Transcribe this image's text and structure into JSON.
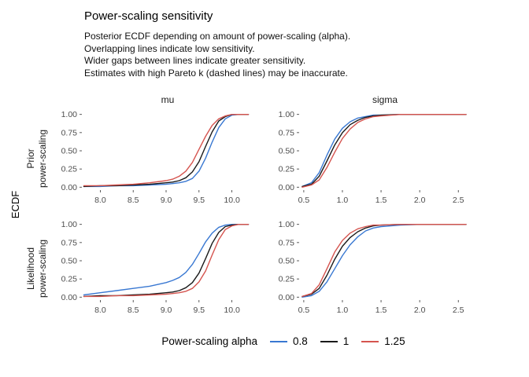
{
  "title": "Power-scaling sensitivity",
  "subtitle_lines": [
    "Posterior ECDF depending on amount of power-scaling (alpha).",
    "Overlapping lines indicate low sensitivity.",
    "Wider gaps between lines indicate greater sensitivity.",
    "Estimates with high Pareto k (dashed lines) may be inaccurate."
  ],
  "outer_y_label": "ECDF",
  "legend": {
    "title": "Power-scaling alpha",
    "items": [
      {
        "label": "0.8",
        "color": "#3978D2"
      },
      {
        "label": "1",
        "color": "#1A1A1A"
      },
      {
        "label": "1.25",
        "color": "#D5544F"
      }
    ]
  },
  "chart_data": {
    "type": "line",
    "subtype": "ecdf",
    "facet_rows": [
      "Prior power-scaling",
      "Likelihood power-scaling"
    ],
    "facet_row_lines": [
      [
        "Prior",
        "power-scaling"
      ],
      [
        "Likelihood",
        "power-scaling"
      ]
    ],
    "facet_cols": [
      "mu",
      "sigma"
    ],
    "ylabel": "ECDF",
    "ylim": [
      -0.04,
      1.04
    ],
    "y_ticks": [
      "0.00",
      "0.25",
      "0.50",
      "0.75",
      "1.00"
    ],
    "grid": "off",
    "legend_position": "bottom",
    "series_names": [
      "0.8",
      "1",
      "1.25"
    ],
    "series_colors": [
      "#3978D2",
      "#1A1A1A",
      "#D5544F"
    ],
    "series_linestyles": [
      "solid",
      "solid",
      "solid"
    ],
    "panels": [
      {
        "row": "Prior power-scaling",
        "col": "mu",
        "xlim": [
          7.72,
          10.28
        ],
        "x_ticks": [
          "8.0",
          "8.5",
          "9.0",
          "9.5",
          "10.0"
        ],
        "x": [
          7.75,
          8.0,
          8.25,
          8.5,
          8.75,
          9.0,
          9.1,
          9.2,
          9.3,
          9.4,
          9.5,
          9.6,
          9.7,
          9.8,
          9.9,
          10.0,
          10.1,
          10.25
        ],
        "series": [
          {
            "name": "0.8",
            "y": [
              0.01,
              0.01,
              0.02,
              0.02,
              0.03,
              0.04,
              0.05,
              0.06,
              0.08,
              0.12,
              0.22,
              0.4,
              0.62,
              0.82,
              0.94,
              0.99,
              1.0,
              1.0
            ]
          },
          {
            "name": "1",
            "y": [
              0.01,
              0.02,
              0.02,
              0.03,
              0.04,
              0.06,
              0.07,
              0.09,
              0.13,
              0.21,
              0.35,
              0.56,
              0.76,
              0.91,
              0.97,
              1.0,
              1.0,
              1.0
            ]
          },
          {
            "name": "1.25",
            "y": [
              0.02,
              0.02,
              0.03,
              0.04,
              0.06,
              0.09,
              0.11,
              0.15,
              0.22,
              0.34,
              0.52,
              0.7,
              0.85,
              0.94,
              0.98,
              1.0,
              1.0,
              1.0
            ]
          }
        ]
      },
      {
        "row": "Prior power-scaling",
        "col": "sigma",
        "xlim": [
          0.44,
          2.62
        ],
        "x_ticks": [
          "0.5",
          "1.0",
          "1.5",
          "2.0",
          "2.5"
        ],
        "x": [
          0.48,
          0.6,
          0.7,
          0.8,
          0.9,
          1.0,
          1.1,
          1.2,
          1.3,
          1.4,
          1.5,
          1.75,
          2.0,
          2.25,
          2.5,
          2.6
        ],
        "series": [
          {
            "name": "0.8",
            "y": [
              0.01,
              0.06,
              0.2,
              0.44,
              0.66,
              0.81,
              0.9,
              0.95,
              0.97,
              0.99,
              0.99,
              1.0,
              1.0,
              1.0,
              1.0,
              1.0
            ]
          },
          {
            "name": "1",
            "y": [
              0.01,
              0.04,
              0.15,
              0.36,
              0.58,
              0.75,
              0.86,
              0.92,
              0.96,
              0.98,
              0.99,
              1.0,
              1.0,
              1.0,
              1.0,
              1.0
            ]
          },
          {
            "name": "1.25",
            "y": [
              0.0,
              0.03,
              0.1,
              0.27,
              0.48,
              0.67,
              0.8,
              0.89,
              0.94,
              0.97,
              0.98,
              1.0,
              1.0,
              1.0,
              1.0,
              1.0
            ]
          }
        ]
      },
      {
        "row": "Likelihood power-scaling",
        "col": "mu",
        "xlim": [
          7.72,
          10.28
        ],
        "x_ticks": [
          "8.0",
          "8.5",
          "9.0",
          "9.5",
          "10.0"
        ],
        "x": [
          7.75,
          8.0,
          8.25,
          8.5,
          8.75,
          9.0,
          9.1,
          9.2,
          9.3,
          9.4,
          9.5,
          9.6,
          9.7,
          9.8,
          9.9,
          10.0,
          10.1,
          10.25
        ],
        "series": [
          {
            "name": "0.8",
            "y": [
              0.03,
              0.06,
              0.09,
              0.12,
              0.15,
              0.2,
              0.23,
              0.27,
              0.34,
              0.45,
              0.6,
              0.76,
              0.88,
              0.96,
              0.99,
              1.0,
              1.0,
              1.0
            ]
          },
          {
            "name": "1",
            "y": [
              0.01,
              0.02,
              0.02,
              0.03,
              0.04,
              0.06,
              0.07,
              0.09,
              0.13,
              0.2,
              0.33,
              0.53,
              0.74,
              0.89,
              0.97,
              0.99,
              1.0,
              1.0
            ]
          },
          {
            "name": "1.25",
            "y": [
              0.01,
              0.01,
              0.02,
              0.02,
              0.03,
              0.04,
              0.05,
              0.06,
              0.08,
              0.12,
              0.21,
              0.36,
              0.58,
              0.79,
              0.93,
              0.98,
              1.0,
              1.0
            ]
          }
        ]
      },
      {
        "row": "Likelihood power-scaling",
        "col": "sigma",
        "xlim": [
          0.44,
          2.62
        ],
        "x_ticks": [
          "0.5",
          "1.0",
          "1.5",
          "2.0",
          "2.5"
        ],
        "x": [
          0.48,
          0.6,
          0.7,
          0.8,
          0.9,
          1.0,
          1.1,
          1.2,
          1.3,
          1.4,
          1.5,
          1.75,
          2.0,
          2.25,
          2.5,
          2.6
        ],
        "series": [
          {
            "name": "0.8",
            "y": [
              0.0,
              0.02,
              0.08,
              0.21,
              0.39,
              0.57,
              0.72,
              0.83,
              0.91,
              0.95,
              0.97,
              0.99,
              1.0,
              1.0,
              1.0,
              1.0
            ]
          },
          {
            "name": "1",
            "y": [
              0.01,
              0.04,
              0.12,
              0.3,
              0.52,
              0.7,
              0.82,
              0.9,
              0.95,
              0.98,
              0.99,
              1.0,
              1.0,
              1.0,
              1.0,
              1.0
            ]
          },
          {
            "name": "1.25",
            "y": [
              0.01,
              0.05,
              0.17,
              0.39,
              0.62,
              0.78,
              0.88,
              0.94,
              0.97,
              0.99,
              0.99,
              1.0,
              1.0,
              1.0,
              1.0,
              1.0
            ]
          }
        ]
      }
    ]
  }
}
